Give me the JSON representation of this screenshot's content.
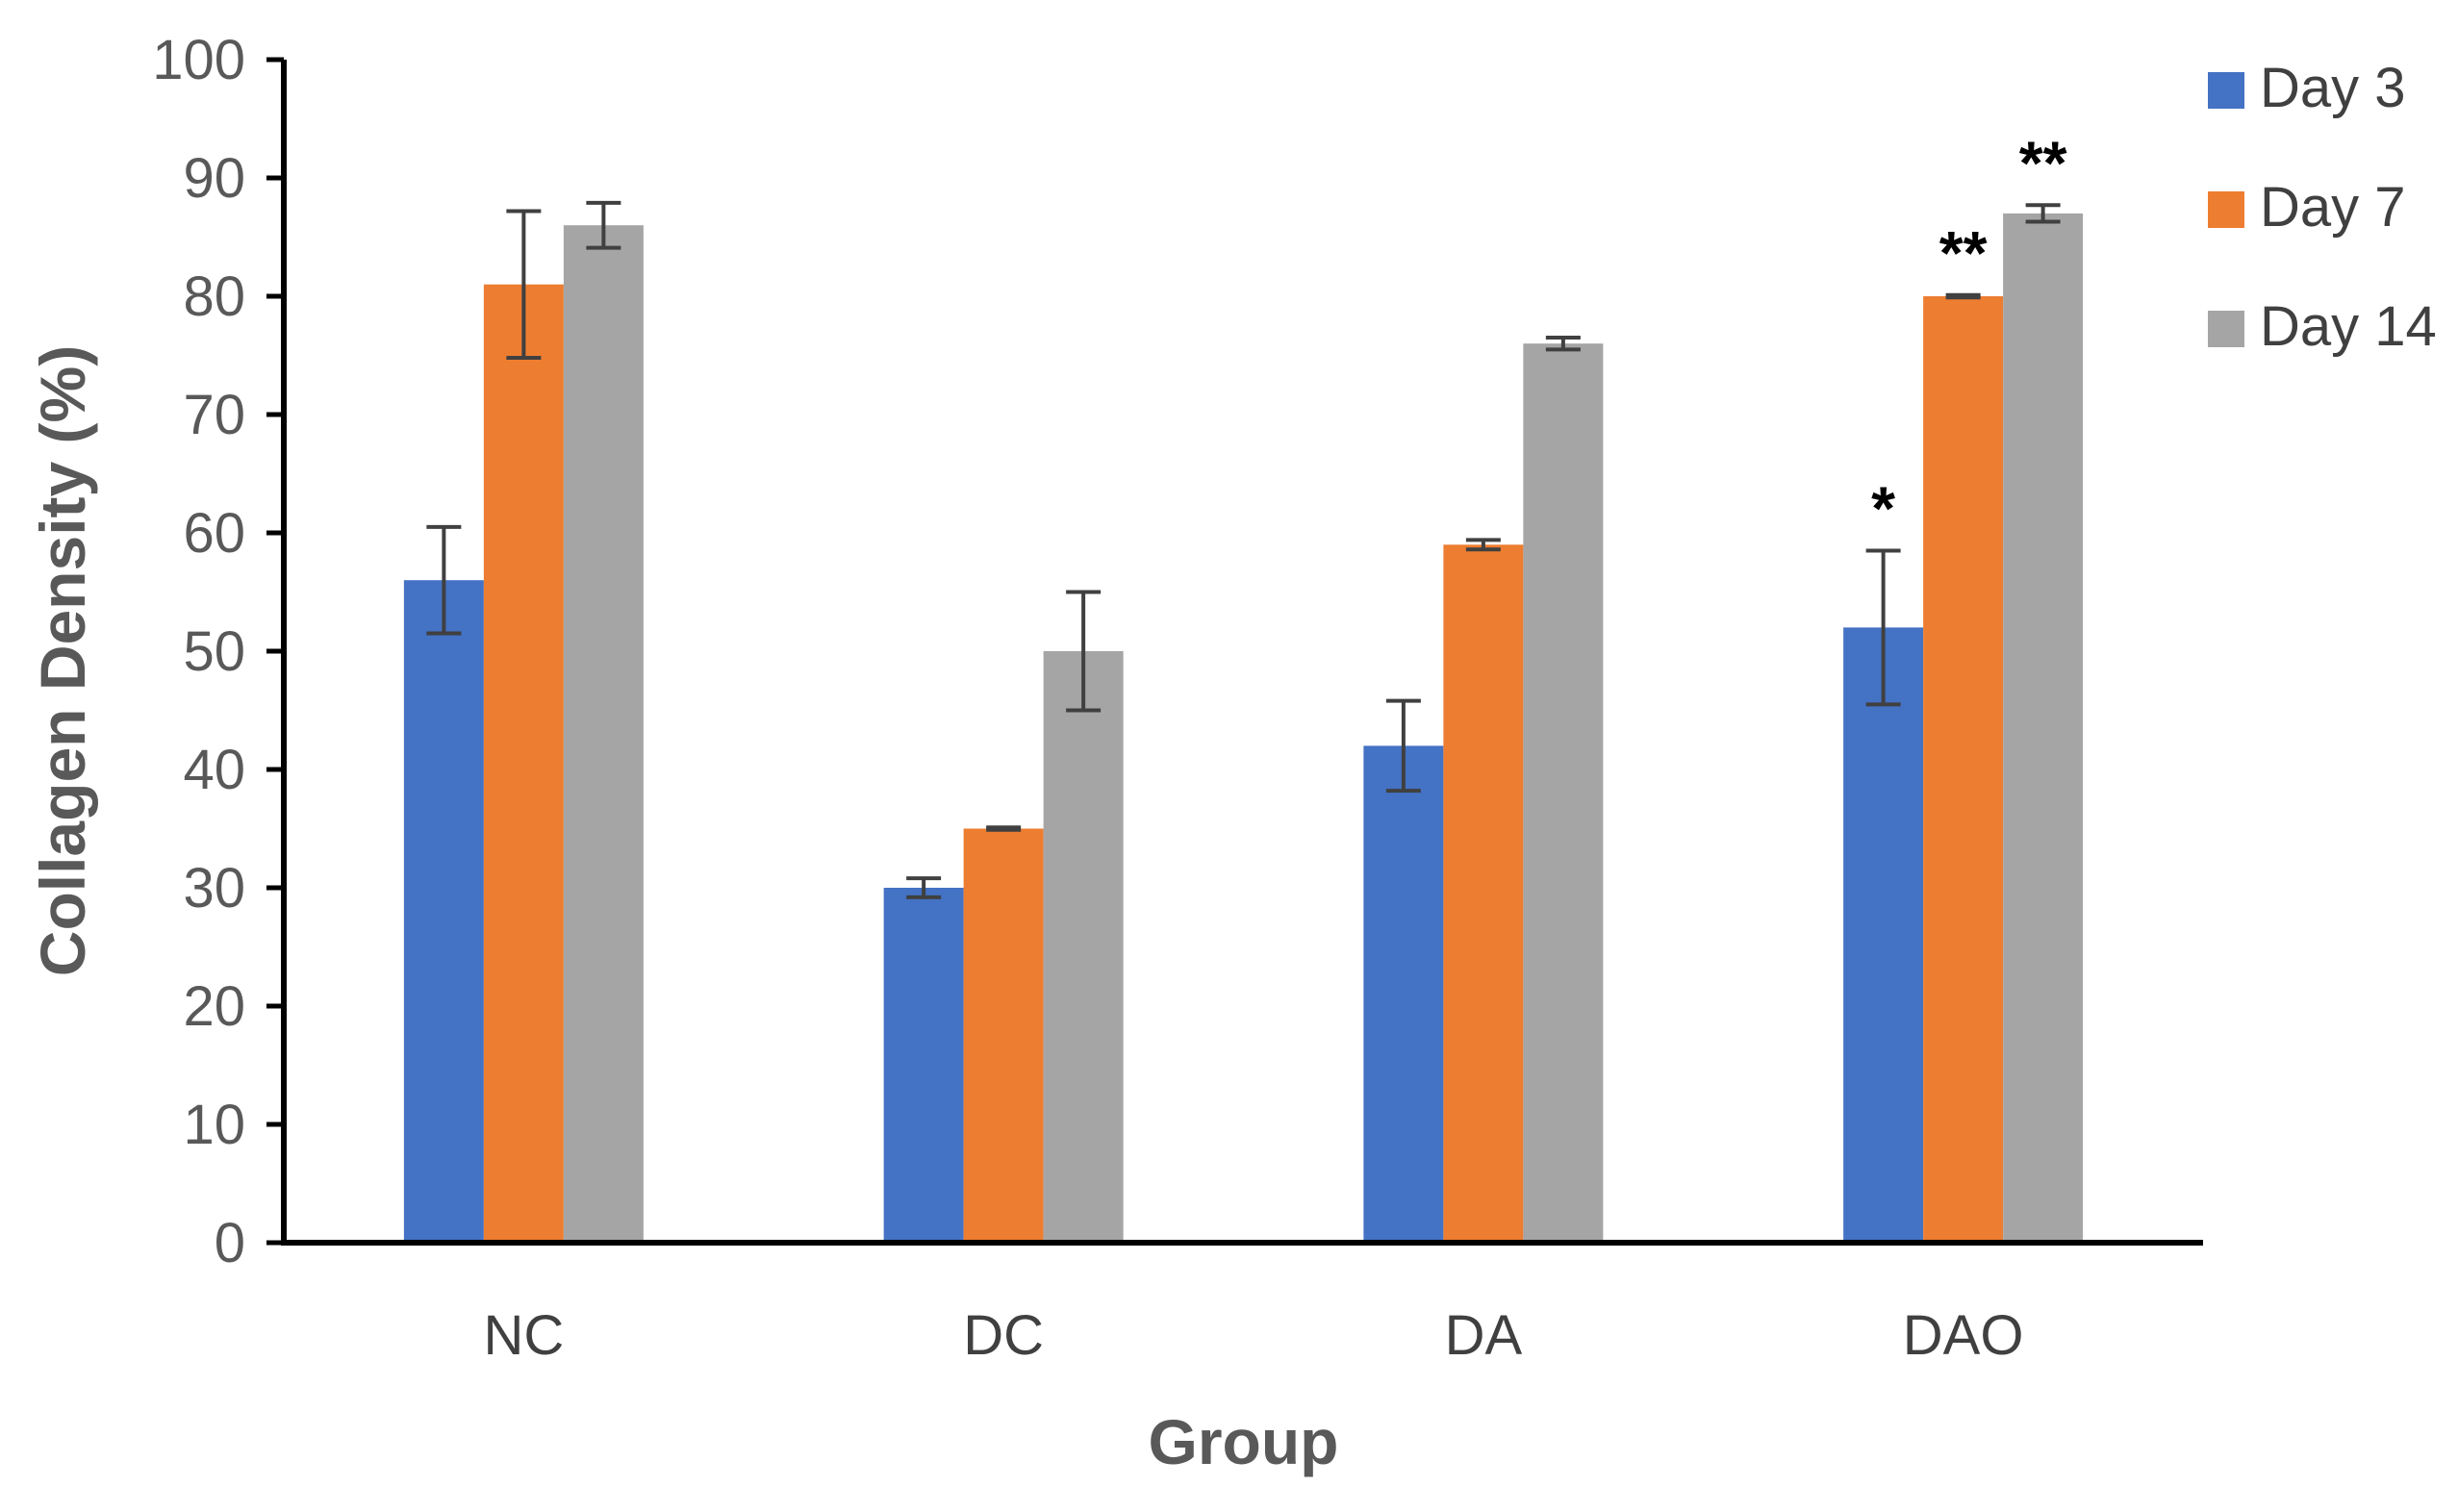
{
  "chart_data": {
    "type": "bar",
    "title": "",
    "xlabel": "Group",
    "ylabel": "Collagen Density (%)",
    "ylim": [
      0,
      100
    ],
    "yticks": [
      0,
      10,
      20,
      30,
      40,
      50,
      60,
      70,
      80,
      90,
      100
    ],
    "categories": [
      "NC",
      "DC",
      "DA",
      "DAO"
    ],
    "legend_position": "top-right",
    "grid": false,
    "series": [
      {
        "name": "Day 3",
        "color": "#4472c4",
        "values": [
          56,
          30,
          42,
          52
        ],
        "error": [
          4.5,
          0.8,
          3.8,
          6.5
        ],
        "annotations": [
          "",
          "",
          "",
          "*"
        ]
      },
      {
        "name": "Day 7",
        "color": "#ed7d31",
        "values": [
          81,
          35,
          59,
          80
        ],
        "error": [
          6.2,
          0.1,
          0.4,
          0.1
        ],
        "annotations": [
          "",
          "",
          "",
          "**"
        ]
      },
      {
        "name": "Day 14",
        "color": "#a5a5a5",
        "values": [
          86,
          50,
          76,
          87
        ],
        "error": [
          1.9,
          5.0,
          0.5,
          0.7
        ],
        "annotations": [
          "",
          "",
          "",
          "**"
        ]
      }
    ]
  }
}
